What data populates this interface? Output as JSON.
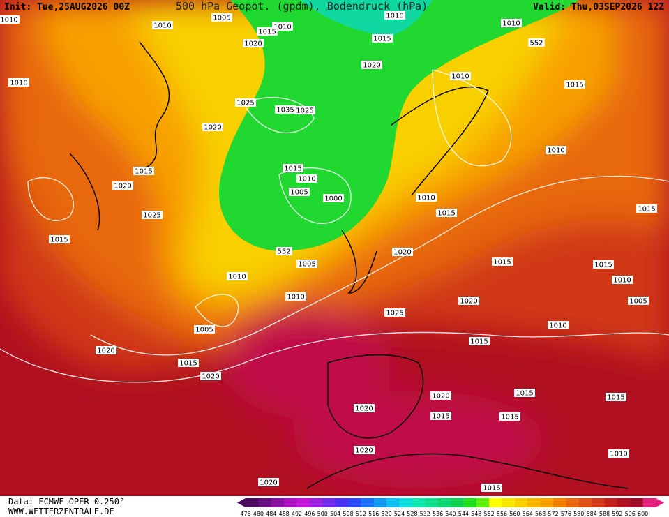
{
  "header": {
    "init": "Init: Tue,25AUG2026 00Z",
    "title": "500 hPa Geopot. (gpdm), Bodendruck (hPa)",
    "valid": "Valid: Thu,03SEP2026 12Z"
  },
  "footer": {
    "source": "Data: ECMWF OPER 0.250°",
    "website": "WWW.WETTERZENTRALE.DE"
  },
  "colorbar": {
    "labels": [
      476,
      480,
      484,
      488,
      492,
      496,
      500,
      504,
      508,
      512,
      516,
      520,
      524,
      528,
      532,
      536,
      540,
      544,
      548,
      552,
      556,
      560,
      564,
      568,
      572,
      576,
      580,
      584,
      588,
      592,
      596,
      600
    ],
    "colors": [
      "#4b0a5e",
      "#6a0f80",
      "#8a10a0",
      "#a812c0",
      "#c414d8",
      "#9a20e0",
      "#7028e8",
      "#4a30f0",
      "#2a48f4",
      "#1a70f4",
      "#109af0",
      "#10c0f0",
      "#10e0e0",
      "#10e8b0",
      "#10e090",
      "#10d870",
      "#10d050",
      "#20e020",
      "#60f010",
      "#ffff00",
      "#f8e800",
      "#f8d000",
      "#f8b800",
      "#f8a000",
      "#f08000",
      "#e86810",
      "#e05018",
      "#d03818",
      "#c02018",
      "#b01020",
      "#a00a28",
      "#e0207a"
    ]
  },
  "isobars": [
    "1010",
    "1005",
    "1010",
    "1010",
    "1015",
    "1020",
    "1010",
    "1015",
    "1010",
    "552",
    "1010",
    "1020",
    "1010",
    "1015",
    "1025",
    "1035",
    "1025",
    "1020",
    "1010",
    "1015",
    "1015",
    "1010",
    "1020",
    "1005",
    "1000",
    "1010",
    "1015",
    "1025",
    "1015",
    "1015",
    "552",
    "1020",
    "1005",
    "1015",
    "1015",
    "1010",
    "1010",
    "1010",
    "1020",
    "1005",
    "1025",
    "1010",
    "1005",
    "1015",
    "1020",
    "1015",
    "1020",
    "1020",
    "1015",
    "1015",
    "1020",
    "1015",
    "1015",
    "1020",
    "1010",
    "1020",
    "1015"
  ]
}
